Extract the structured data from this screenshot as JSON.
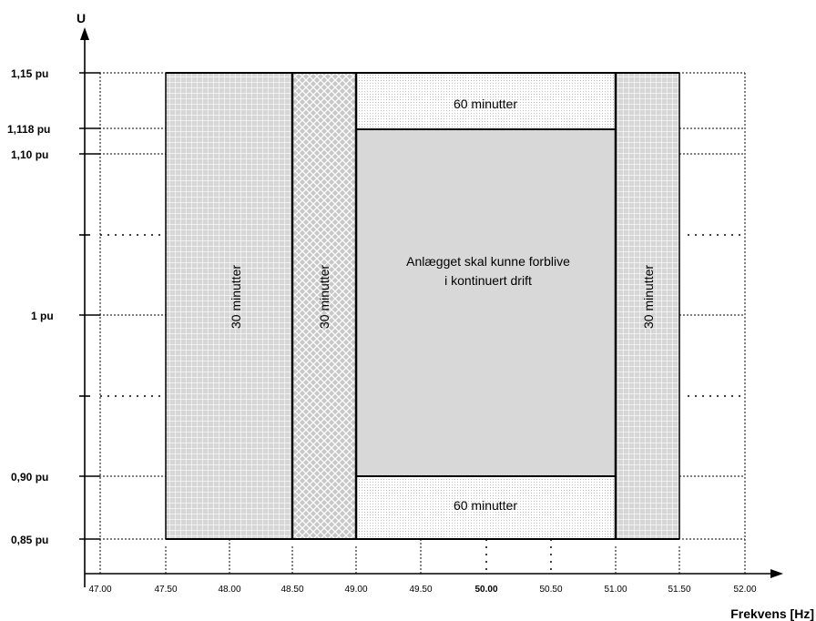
{
  "chart_data": {
    "type": "area",
    "y_axis_label": "U",
    "x_axis_label": "Frekvens [Hz]",
    "x_ticks": [
      "47.00",
      "47.50",
      "48.00",
      "48.50",
      "49.00",
      "49.50",
      "50.00",
      "50.50",
      "51.00",
      "51.50",
      "52.00"
    ],
    "y_ticks": [
      {
        "label": "1,15 pu",
        "value": 1.15
      },
      {
        "label": "1,118 pu",
        "value": 1.118
      },
      {
        "label": "1,10 pu",
        "value": 1.1
      },
      {
        "label": "1 pu",
        "value": 1.0
      },
      {
        "label": "0,90 pu",
        "value": 0.9
      },
      {
        "label": "0,85 pu",
        "value": 0.85
      }
    ],
    "x_range": [
      47.0,
      52.0
    ],
    "y_range": [
      0.85,
      1.15
    ],
    "regions": [
      {
        "id": "left-outer",
        "label": "30 minutter",
        "x0": 47.5,
        "x1": 48.5,
        "y0": 0.85,
        "y1": 1.15,
        "pattern": "grid"
      },
      {
        "id": "left-inner",
        "label": "30 minutter",
        "x0": 48.5,
        "x1": 49.0,
        "y0": 0.85,
        "y1": 1.15,
        "pattern": "crosshatch"
      },
      {
        "id": "top-band",
        "label": "60 minutter",
        "x0": 49.0,
        "x1": 51.0,
        "y0": 1.118,
        "y1": 1.15,
        "pattern": "dots"
      },
      {
        "id": "continuous",
        "label_lines": [
          "Anlægget skal kunne forblive",
          "i kontinuert drift"
        ],
        "x0": 49.0,
        "x1": 51.0,
        "y0": 0.9,
        "y1": 1.118,
        "pattern": "solid"
      },
      {
        "id": "bottom-band",
        "label": "60 minutter",
        "x0": 49.0,
        "x1": 51.0,
        "y0": 0.85,
        "y1": 0.9,
        "pattern": "dots"
      },
      {
        "id": "right",
        "label": "30 minutter",
        "x0": 51.0,
        "x1": 51.5,
        "y0": 0.85,
        "y1": 1.15,
        "pattern": "grid"
      }
    ]
  }
}
